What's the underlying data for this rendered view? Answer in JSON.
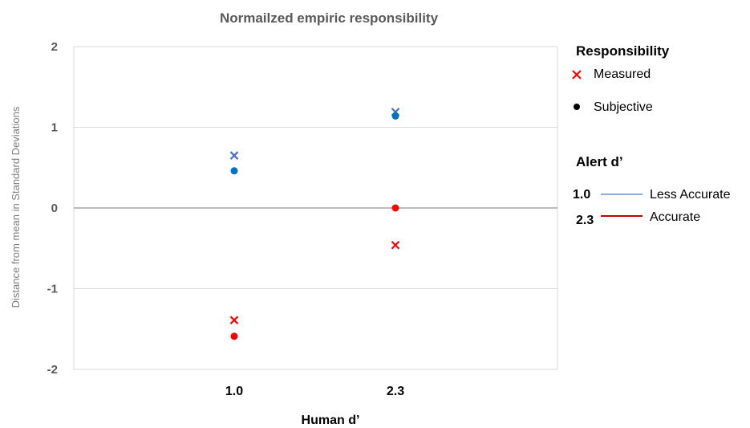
{
  "chart_data": {
    "type": "scatter",
    "title": "Normailzed empiric responsibility",
    "xlabel": "Human d’",
    "ylabel": "Distance from mean in Standard Deviations",
    "categories": [
      "1.0",
      "2.3"
    ],
    "ylim": [
      -2,
      2
    ],
    "yticks": [
      "2",
      "1",
      "0",
      "-1",
      "-2"
    ],
    "grid": true,
    "legend_placement": "right",
    "colors": {
      "less_accurate": "#4472c4",
      "accurate": "#ff0000",
      "subjective_less": "#0070c0"
    },
    "series": [
      {
        "name": "Measured",
        "alert": "1.0",
        "marker": "x",
        "color": "#4472c4",
        "values": [
          0.65,
          1.19
        ]
      },
      {
        "name": "Subjective",
        "alert": "1.0",
        "marker": "circle",
        "color": "#0070c0",
        "values": [
          0.46,
          1.14
        ]
      },
      {
        "name": "Measured",
        "alert": "2.3",
        "marker": "x",
        "color": "#ff0000",
        "values": [
          -1.39,
          -0.46
        ]
      },
      {
        "name": "Subjective",
        "alert": "2.3",
        "marker": "circle",
        "color": "#ff0000",
        "values": [
          -1.59,
          0.0
        ]
      }
    ]
  },
  "legend": {
    "responsibility_title": "Responsibility",
    "responsibility_items": [
      {
        "label": "Measured",
        "marker": "x",
        "color": "#ff0000"
      },
      {
        "label": "Subjective",
        "marker": "circle",
        "color": "#000000"
      }
    ],
    "alert_title": "Alert d’",
    "alert_items": [
      {
        "value": "1.0",
        "label": "Less Accurate",
        "color": "#8eaadb"
      },
      {
        "value": "2.3",
        "label": "Accurate",
        "color": "#c00000"
      }
    ]
  }
}
